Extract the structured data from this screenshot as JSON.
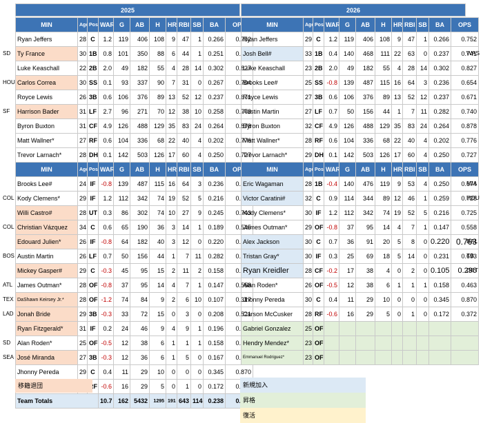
{
  "years": {
    "left": "2025",
    "right": "2026"
  },
  "headers": [
    "MIN",
    "Age",
    "Pos",
    "WAR",
    "G",
    "AB",
    "H",
    "HR",
    "RBI",
    "SB",
    "BA",
    "OPS"
  ],
  "top_left": [
    {
      "n": "Ryan Jeffers",
      "a": "28",
      "p": "C",
      "w": "1.2",
      "g": "119",
      "ab": "406",
      "h": "108",
      "hr": "9",
      "rbi": "47",
      "sb": "1",
      "ba": "0.266",
      "ops": "0.752",
      "c": ""
    },
    {
      "n": "Ty France",
      "a": "30",
      "p": "1B",
      "w": "0.8",
      "g": "101",
      "ab": "350",
      "h": "88",
      "hr": "6",
      "rbi": "44",
      "sb": "1",
      "ba": "0.251",
      "ops": "0.678",
      "c": "orange"
    },
    {
      "n": "Luke Keaschall",
      "a": "22",
      "p": "2B",
      "w": "2.0",
      "g": "49",
      "ab": "182",
      "h": "55",
      "hr": "4",
      "rbi": "28",
      "sb": "14",
      "ba": "0.302",
      "ops": "0.827",
      "c": ""
    },
    {
      "n": "Carlos Correa",
      "a": "30",
      "p": "SS",
      "w": "0.1",
      "g": "93",
      "ab": "337",
      "h": "90",
      "hr": "7",
      "rbi": "31",
      "sb": "0",
      "ba": "0.267",
      "ops": "0.704",
      "c": "orange"
    },
    {
      "n": "Royce Lewis",
      "a": "26",
      "p": "3B",
      "w": "0.6",
      "g": "106",
      "ab": "376",
      "h": "89",
      "hr": "13",
      "rbi": "52",
      "sb": "12",
      "ba": "0.237",
      "ops": "0.671",
      "c": ""
    },
    {
      "n": "Harrison Bader",
      "a": "31",
      "p": "LF",
      "w": "2.7",
      "g": "96",
      "ab": "271",
      "h": "70",
      "hr": "12",
      "rbi": "38",
      "sb": "10",
      "ba": "0.258",
      "ops": "0.778",
      "c": "orange"
    },
    {
      "n": "Byron Buxton",
      "a": "31",
      "p": "CF",
      "w": "4.9",
      "g": "126",
      "ab": "488",
      "h": "129",
      "hr": "35",
      "rbi": "83",
      "sb": "24",
      "ba": "0.264",
      "ops": "0.878",
      "c": ""
    },
    {
      "n": "Matt Wallner*",
      "a": "27",
      "p": "RF",
      "w": "0.6",
      "g": "104",
      "ab": "336",
      "h": "68",
      "hr": "22",
      "rbi": "40",
      "sb": "4",
      "ba": "0.202",
      "ops": "0.776",
      "c": ""
    },
    {
      "n": "Trevor Larnach*",
      "a": "28",
      "p": "DH",
      "w": "0.1",
      "g": "142",
      "ab": "503",
      "h": "126",
      "hr": "17",
      "rbi": "60",
      "sb": "4",
      "ba": "0.250",
      "ops": "0.727",
      "c": ""
    }
  ],
  "top_right": [
    {
      "n": "Ryan Jeffers",
      "a": "29",
      "p": "C",
      "w": "1.2",
      "g": "119",
      "ab": "406",
      "h": "108",
      "hr": "9",
      "rbi": "47",
      "sb": "1",
      "ba": "0.266",
      "ops": "0.752",
      "c": ""
    },
    {
      "n": "Josh Bell#",
      "a": "33",
      "p": "1B",
      "w": "0.4",
      "g": "140",
      "ab": "468",
      "h": "111",
      "hr": "22",
      "rbi": "63",
      "sb": "0",
      "ba": "0.237",
      "ops": "0.741",
      "c": "blue"
    },
    {
      "n": "Luke Keaschall",
      "a": "23",
      "p": "2B",
      "w": "2.0",
      "g": "49",
      "ab": "182",
      "h": "55",
      "hr": "4",
      "rbi": "28",
      "sb": "14",
      "ba": "0.302",
      "ops": "0.827",
      "c": ""
    },
    {
      "n": "Brooks Lee#",
      "a": "25",
      "p": "SS",
      "w": "-0.8",
      "g": "139",
      "ab": "487",
      "h": "115",
      "hr": "16",
      "rbi": "64",
      "sb": "3",
      "ba": "0.236",
      "ops": "0.654",
      "c": ""
    },
    {
      "n": "Royce Lewis",
      "a": "27",
      "p": "3B",
      "w": "0.6",
      "g": "106",
      "ab": "376",
      "h": "89",
      "hr": "13",
      "rbi": "52",
      "sb": "12",
      "ba": "0.237",
      "ops": "0.671",
      "c": ""
    },
    {
      "n": "Austin Martin",
      "a": "27",
      "p": "LF",
      "w": "0.7",
      "g": "50",
      "ab": "156",
      "h": "44",
      "hr": "1",
      "rbi": "7",
      "sb": "11",
      "ba": "0.282",
      "ops": "0.740",
      "c": ""
    },
    {
      "n": "Byron Buxton",
      "a": "32",
      "p": "CF",
      "w": "4.9",
      "g": "126",
      "ab": "488",
      "h": "129",
      "hr": "35",
      "rbi": "83",
      "sb": "24",
      "ba": "0.264",
      "ops": "0.878",
      "c": ""
    },
    {
      "n": "Matt Wallner*",
      "a": "28",
      "p": "RF",
      "w": "0.6",
      "g": "104",
      "ab": "336",
      "h": "68",
      "hr": "22",
      "rbi": "40",
      "sb": "4",
      "ba": "0.202",
      "ops": "0.776",
      "c": ""
    },
    {
      "n": "Trevor Larnach*",
      "a": "29",
      "p": "DH",
      "w": "0.1",
      "g": "142",
      "ab": "503",
      "h": "126",
      "hr": "17",
      "rbi": "60",
      "sb": "4",
      "ba": "0.250",
      "ops": "0.727",
      "c": ""
    }
  ],
  "bottom_left": [
    {
      "n": "Brooks Lee#",
      "a": "24",
      "p": "IF",
      "w": "-0.8",
      "g": "139",
      "ab": "487",
      "h": "115",
      "hr": "16",
      "rbi": "64",
      "sb": "3",
      "ba": "0.236",
      "ops": "0.654",
      "c": ""
    },
    {
      "n": "Kody Clemens*",
      "a": "29",
      "p": "IF",
      "w": "1.2",
      "g": "112",
      "ab": "342",
      "h": "74",
      "hr": "19",
      "rbi": "52",
      "sb": "5",
      "ba": "0.216",
      "ops": "0.725",
      "c": ""
    },
    {
      "n": "Willi Castro#",
      "a": "28",
      "p": "UT",
      "w": "0.3",
      "g": "86",
      "ab": "302",
      "h": "74",
      "hr": "10",
      "rbi": "27",
      "sb": "9",
      "ba": "0.245",
      "ops": "0.743",
      "c": "orange"
    },
    {
      "n": "Christian Vázquez",
      "a": "34",
      "p": "C",
      "w": "0.6",
      "g": "65",
      "ab": "190",
      "h": "36",
      "hr": "3",
      "rbi": "14",
      "sb": "1",
      "ba": "0.189",
      "ops": "0.545",
      "c": "orange"
    },
    {
      "n": "Edouard Julien*",
      "a": "26",
      "p": "IF",
      "w": "-0.8",
      "g": "64",
      "ab": "182",
      "h": "40",
      "hr": "3",
      "rbi": "12",
      "sb": "0",
      "ba": "0.220",
      "ops": "0.633",
      "c": "orange"
    },
    {
      "n": "Austin Martin",
      "a": "26",
      "p": "LF",
      "w": "0.7",
      "g": "50",
      "ab": "156",
      "h": "44",
      "hr": "1",
      "rbi": "7",
      "sb": "11",
      "ba": "0.282",
      "ops": "0.740",
      "c": ""
    },
    {
      "n": "Mickey Gasper#",
      "a": "29",
      "p": "C",
      "w": "-0.3",
      "g": "45",
      "ab": "95",
      "h": "15",
      "hr": "2",
      "rbi": "11",
      "sb": "2",
      "ba": "0.158",
      "ops": "0.488",
      "c": "orange"
    },
    {
      "n": "James Outman*",
      "a": "28",
      "p": "OF",
      "w": "-0.8",
      "g": "37",
      "ab": "95",
      "h": "14",
      "hr": "4",
      "rbi": "7",
      "sb": "1",
      "ba": "0.147",
      "ops": "0.558",
      "c": ""
    },
    {
      "n": "DaShawn Keirsey Jr.*",
      "a": "28",
      "p": "OF",
      "w": "-1.2",
      "g": "74",
      "ab": "84",
      "h": "9",
      "hr": "2",
      "rbi": "6",
      "sb": "10",
      "ba": "0.107",
      "ops": "0.317",
      "c": "orange",
      "small": true
    },
    {
      "n": "Jonah Bride",
      "a": "29",
      "p": "3B",
      "w": "-0.3",
      "g": "33",
      "ab": "72",
      "h": "15",
      "hr": "0",
      "rbi": "3",
      "sb": "0",
      "ba": "0.208",
      "ops": "0.521",
      "c": "orange"
    },
    {
      "n": "Ryan Fitzgerald*",
      "a": "31",
      "p": "IF",
      "w": "0.2",
      "g": "24",
      "ab": "46",
      "h": "9",
      "hr": "4",
      "rbi": "9",
      "sb": "1",
      "ba": "0.196",
      "ops": "0.758",
      "c": "orange"
    },
    {
      "n": "Alan Roden*",
      "a": "25",
      "p": "OF",
      "w": "-0.5",
      "g": "12",
      "ab": "38",
      "h": "6",
      "hr": "1",
      "rbi": "1",
      "sb": "1",
      "ba": "0.158",
      "ops": "0.463",
      "c": ""
    },
    {
      "n": "José Miranda",
      "a": "27",
      "p": "3B",
      "w": "-0.3",
      "g": "12",
      "ab": "36",
      "h": "6",
      "hr": "1",
      "rbi": "5",
      "sb": "0",
      "ba": "0.167",
      "ops": "0.417",
      "c": "orange"
    },
    {
      "n": "Jhonny Pereda",
      "a": "29",
      "p": "C",
      "w": "0.4",
      "g": "11",
      "ab": "29",
      "h": "10",
      "hr": "0",
      "rbi": "0",
      "sb": "0",
      "ba": "0.345",
      "ops": "0.870",
      "c": ""
    },
    {
      "n": "Carson McCusker",
      "a": "27",
      "p": "RF",
      "w": "-0.6",
      "g": "16",
      "ab": "29",
      "h": "5",
      "hr": "0",
      "rbi": "1",
      "sb": "0",
      "ba": "0.172",
      "ops": "0.372",
      "c": ""
    }
  ],
  "bottom_right": [
    {
      "n": "Eric Wagaman",
      "a": "28",
      "p": "1B",
      "w": "-0.4",
      "g": "140",
      "ab": "476",
      "h": "119",
      "hr": "9",
      "rbi": "53",
      "sb": "4",
      "ba": "0.250",
      "ops": "0.674",
      "c": "blue",
      "fl": true
    },
    {
      "n": "Victor Caratini#",
      "a": "32",
      "p": "C",
      "w": "0.9",
      "g": "114",
      "ab": "344",
      "h": "89",
      "hr": "12",
      "rbi": "46",
      "sb": "1",
      "ba": "0.259",
      "ops": "0.728",
      "c": "blue",
      "fl": true
    },
    {
      "n": "Kody Clemens*",
      "a": "30",
      "p": "IF",
      "w": "1.2",
      "g": "112",
      "ab": "342",
      "h": "74",
      "hr": "19",
      "rbi": "52",
      "sb": "5",
      "ba": "0.216",
      "ops": "0.725",
      "c": ""
    },
    {
      "n": "James Outman*",
      "a": "29",
      "p": "OF",
      "w": "-0.8",
      "g": "37",
      "ab": "95",
      "h": "14",
      "hr": "4",
      "rbi": "7",
      "sb": "1",
      "ba": "0.147",
      "ops": "0.558",
      "c": ""
    },
    {
      "n": "Alex Jackson",
      "a": "30",
      "p": "C",
      "w": "0.7",
      "g": "36",
      "ab": "91",
      "h": "20",
      "hr": "5",
      "rbi": "8",
      "sb": "0",
      "ba": "0.220",
      "ops": "0.763",
      "c": "blue",
      "fl": true
    },
    {
      "n": "Tristan Gray*",
      "a": "30",
      "p": "IF",
      "w": "0.3",
      "g": "25",
      "ab": "69",
      "h": "18",
      "hr": "5",
      "rbi": "14",
      "sb": "0",
      "ba": "0.231",
      "ops": "0.693",
      "c": "blue",
      "fl": true
    },
    {
      "n": "Ryan Kreidler",
      "a": "28",
      "p": "CF",
      "w": "-0.2",
      "g": "17",
      "ab": "38",
      "h": "4",
      "hr": "0",
      "rbi": "2",
      "sb": "0",
      "ba": "0.105",
      "ops": "0.296",
      "c": "blue",
      "fl": true
    },
    {
      "n": "Alan Roden*",
      "a": "26",
      "p": "OF",
      "w": "-0.5",
      "g": "12",
      "ab": "38",
      "h": "6",
      "hr": "1",
      "rbi": "1",
      "sb": "1",
      "ba": "0.158",
      "ops": "0.463",
      "c": ""
    },
    {
      "n": "Jhonny Pereda",
      "a": "30",
      "p": "C",
      "w": "0.4",
      "g": "11",
      "ab": "29",
      "h": "10",
      "hr": "0",
      "rbi": "0",
      "sb": "0",
      "ba": "0.345",
      "ops": "0.870",
      "c": ""
    },
    {
      "n": "Carson McCusker",
      "a": "28",
      "p": "RF",
      "w": "-0.6",
      "g": "16",
      "ab": "29",
      "h": "5",
      "hr": "0",
      "rbi": "1",
      "sb": "0",
      "ba": "0.172",
      "ops": "0.372",
      "c": ""
    },
    {
      "n": "Gabriel Gonzalez",
      "a": "25",
      "p": "OF",
      "w": "",
      "g": "",
      "ab": "",
      "h": "",
      "hr": "",
      "rbi": "",
      "sb": "",
      "ba": "",
      "ops": "",
      "c": "green"
    },
    {
      "n": "Hendry Mendez*",
      "a": "23",
      "p": "OF",
      "w": "",
      "g": "",
      "ab": "",
      "h": "",
      "hr": "",
      "rbi": "",
      "sb": "",
      "ba": "",
      "ops": "",
      "c": "green"
    },
    {
      "n": "Emmanuel Rodriguez*",
      "a": "23",
      "p": "OF",
      "w": "",
      "g": "",
      "ab": "",
      "h": "",
      "hr": "",
      "rbi": "",
      "sb": "",
      "ba": "",
      "ops": "",
      "c": "green",
      "tiny": true
    }
  ],
  "totals": {
    "label": "Team Totals",
    "w": "10.7",
    "g": "162",
    "ab": "5432",
    "h": "1295",
    "hr": "191",
    "rbi": "643",
    "sb": "114",
    "ba": "0.238",
    "ops": "0.708"
  },
  "side_left": [
    {
      "row": 1,
      "t": "SD"
    },
    {
      "row": 3,
      "t": "HOU"
    },
    {
      "row": 5,
      "t": "SF"
    },
    {
      "row": 11,
      "t": "COL"
    },
    {
      "row": 13,
      "t": "COL"
    },
    {
      "row": 15,
      "t": "BOS"
    },
    {
      "row": 17,
      "t": "ATL"
    },
    {
      "row": 18,
      "t": "TEX"
    },
    {
      "row": 19,
      "t": "LAD"
    },
    {
      "row": 21,
      "t": "SD"
    },
    {
      "row": 22,
      "t": "SEA"
    }
  ],
  "side_right": [
    {
      "row": 1,
      "t": "WAS"
    },
    {
      "row": 10,
      "t": "MIA"
    },
    {
      "row": 11,
      "t": "HOU"
    },
    {
      "row": 14,
      "t": "BAL"
    },
    {
      "row": 15,
      "t": "TB"
    },
    {
      "row": 16,
      "t": "DET"
    }
  ],
  "legend": {
    "departed": "移籍退団",
    "new": "新規加入",
    "promoted": "昇格",
    "returned": "復活"
  },
  "colors": {
    "header": "#3d74b5",
    "departed": "#fbdcc8",
    "new": "#dce9f5",
    "promoted": "#e2efd9",
    "returned": "#fff2cc",
    "negative": "#c00000"
  }
}
